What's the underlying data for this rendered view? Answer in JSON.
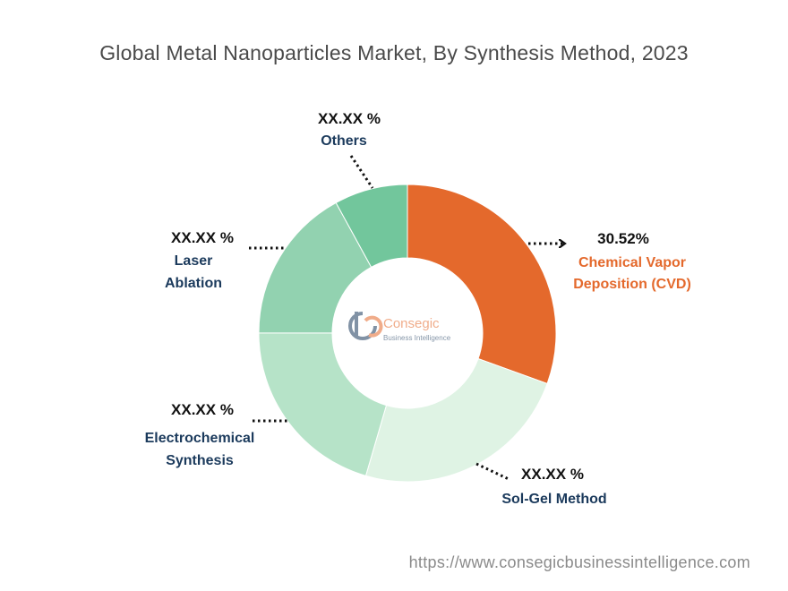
{
  "chart_data": {
    "type": "pie",
    "title": "Global Metal Nanoparticles Market, By Synthesis Method, 2023",
    "slices": [
      {
        "label_lines": [
          "Chemical Vapor",
          "Deposition (CVD)"
        ],
        "value": 30.52,
        "value_label": "30.52%",
        "color": "#e4692c",
        "label_color": "#e4692c"
      },
      {
        "label_lines": [
          "Sol-Gel Method"
        ],
        "value": 24.0,
        "value_label": "XX.XX %",
        "color": "#dff3e4",
        "label_color": "#1b3a5c"
      },
      {
        "label_lines": [
          "Electrochemical",
          "Synthesis"
        ],
        "value": 20.5,
        "value_label": "XX.XX %",
        "color": "#b6e3c8",
        "label_color": "#1b3a5c"
      },
      {
        "label_lines": [
          "Laser",
          "Ablation"
        ],
        "value": 17.0,
        "value_label": "XX.XX %",
        "color": "#92d2b0",
        "label_color": "#1b3a5c"
      },
      {
        "label_lines": [
          "Others"
        ],
        "value": 7.98,
        "value_label": "XX.XX %",
        "color": "#72c69c",
        "label_color": "#1b3a5c"
      }
    ]
  },
  "watermark": {
    "brand": "Consegic",
    "tagline": "Business Intelligence"
  },
  "footer": {
    "url": "https://www.consegicbusinessintelligence.com"
  }
}
